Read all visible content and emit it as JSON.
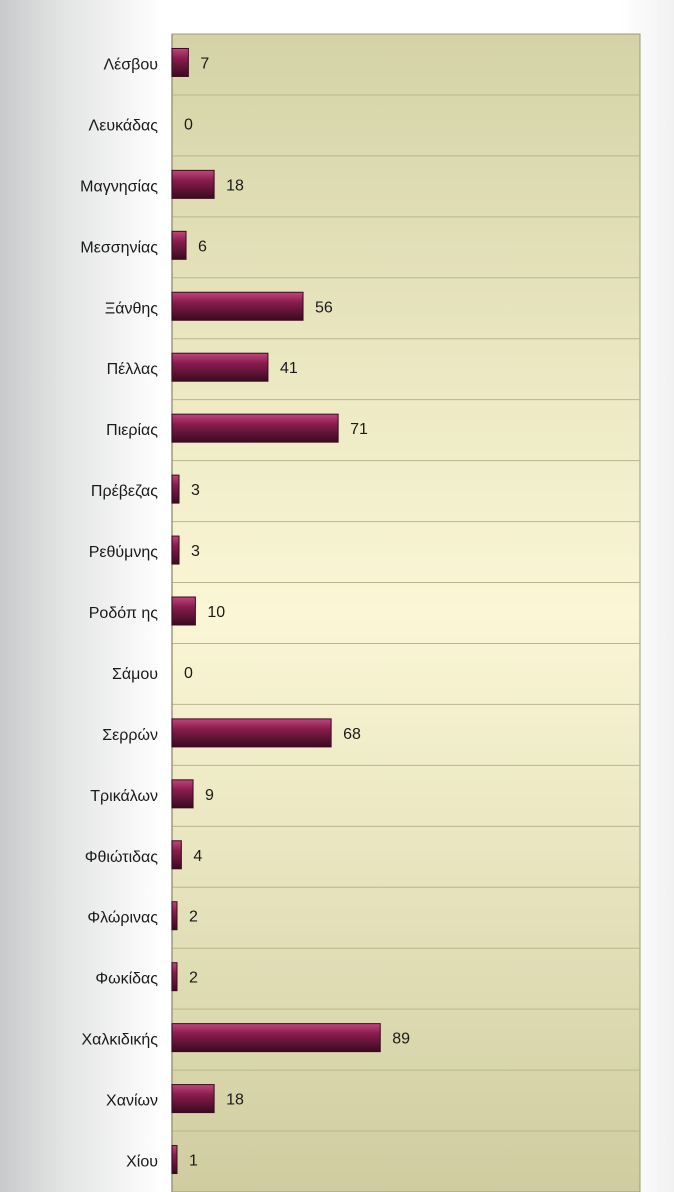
{
  "chart_data": {
    "type": "bar",
    "orientation": "horizontal",
    "categories": [
      "Λέσβου",
      "Λευκάδας",
      "Μαγνησίας",
      "Μεσσηνίας",
      "Ξάνθης",
      "Πέλλας",
      "Πιερίας",
      "Πρέβεζας",
      "Ρεθύμνης",
      "Ροδόπ ης",
      "Σάμου",
      "Σερρών",
      "Τρικάλων",
      "Φθιώτιδας",
      "Φλώρινας",
      "Φωκίδας",
      "Χαλκιδικής",
      "Χανίων",
      "Χίου"
    ],
    "values": [
      7,
      0,
      18,
      6,
      56,
      41,
      71,
      3,
      3,
      10,
      0,
      68,
      9,
      4,
      2,
      2,
      89,
      18,
      1
    ],
    "value_labels": [
      "7",
      "0",
      "18",
      "6",
      "56",
      "41",
      "71",
      "3",
      "3",
      "10",
      "0",
      "68",
      "9",
      "4",
      "2",
      "2",
      "89",
      "18",
      "1"
    ],
    "xlim": [
      0,
      200
    ],
    "grid": true,
    "colors": {
      "bar": "#8a1d4e",
      "bar_highlight": "#c0467e",
      "bar_border": "#3a0a20",
      "plot_bg_top": "#d4d2a6",
      "plot_bg_mid": "#fbf7d6",
      "plot_bg_bottom": "#cfcca0",
      "grid_line": "#b9b68e",
      "plot_border": "#9d9a78"
    }
  }
}
